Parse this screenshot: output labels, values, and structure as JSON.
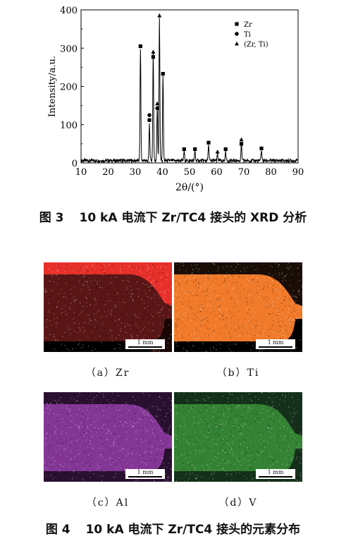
{
  "figure3": {
    "caption_number": "图 3",
    "caption_text": "10 kA 电流下 Zr/TC4 接头的 XRD 分析",
    "chart_data": {
      "type": "line",
      "xlabel": "2θ/(°)",
      "ylabel": "Intensity/a.u.",
      "xlim": [
        10,
        90
      ],
      "ylim": [
        0,
        400
      ],
      "xticks": [
        10,
        20,
        30,
        40,
        50,
        60,
        70,
        80,
        90
      ],
      "yticks": [
        0,
        100,
        200,
        300,
        400
      ],
      "grid": false,
      "legend_position": "top-right",
      "legend": [
        {
          "marker": "square",
          "label": "Zr"
        },
        {
          "marker": "circle",
          "label": "Ti"
        },
        {
          "marker": "triangle",
          "label": "(Zr, Ti)"
        }
      ],
      "peaks": [
        {
          "x": 31.9,
          "y": 295
        },
        {
          "x": 35.2,
          "y": 95
        },
        {
          "x": 36.6,
          "y": 280
        },
        {
          "x": 38.1,
          "y": 145
        },
        {
          "x": 38.9,
          "y": 375
        },
        {
          "x": 40.2,
          "y": 225
        },
        {
          "x": 48.0,
          "y": 25
        },
        {
          "x": 52.0,
          "y": 25
        },
        {
          "x": 57.0,
          "y": 42
        },
        {
          "x": 60.3,
          "y": 18
        },
        {
          "x": 63.3,
          "y": 25
        },
        {
          "x": 69.1,
          "y": 45
        },
        {
          "x": 76.5,
          "y": 28
        }
      ],
      "markers": [
        {
          "x": 31.9,
          "y": 305,
          "type": "square"
        },
        {
          "x": 35.2,
          "y": 125,
          "type": "circle"
        },
        {
          "x": 35.2,
          "y": 112,
          "type": "square"
        },
        {
          "x": 36.6,
          "y": 290,
          "type": "triangle"
        },
        {
          "x": 36.6,
          "y": 277,
          "type": "square"
        },
        {
          "x": 38.1,
          "y": 155,
          "type": "triangle"
        },
        {
          "x": 38.1,
          "y": 143,
          "type": "circle"
        },
        {
          "x": 38.9,
          "y": 385,
          "type": "triangle"
        },
        {
          "x": 40.2,
          "y": 233,
          "type": "square"
        },
        {
          "x": 48.0,
          "y": 36,
          "type": "square"
        },
        {
          "x": 52.0,
          "y": 36,
          "type": "square"
        },
        {
          "x": 57.0,
          "y": 53,
          "type": "square"
        },
        {
          "x": 60.3,
          "y": 29,
          "type": "triangle"
        },
        {
          "x": 63.3,
          "y": 36,
          "type": "square"
        },
        {
          "x": 69.1,
          "y": 61,
          "type": "triangle"
        },
        {
          "x": 69.1,
          "y": 50,
          "type": "square"
        },
        {
          "x": 76.5,
          "y": 38,
          "type": "square"
        }
      ]
    }
  },
  "figure4": {
    "caption_number": "图 4",
    "caption_text": "10 kA 电流下 Zr/TC4 接头的元素分布",
    "scale_label": "1 mm",
    "panels": [
      {
        "id": "a",
        "label": "（a）Zr",
        "color": "#e8302a",
        "dim_color": "#5a1616"
      },
      {
        "id": "b",
        "label": "（b）Ti",
        "color": "#f07a2a",
        "dim_color": "#d06a24"
      },
      {
        "id": "c",
        "label": "（c）Al",
        "color": "#9b3fb0",
        "dim_color": "#2a1030"
      },
      {
        "id": "d",
        "label": "（d）V",
        "color": "#3d9a3d",
        "dim_color": "#15301a"
      }
    ]
  }
}
